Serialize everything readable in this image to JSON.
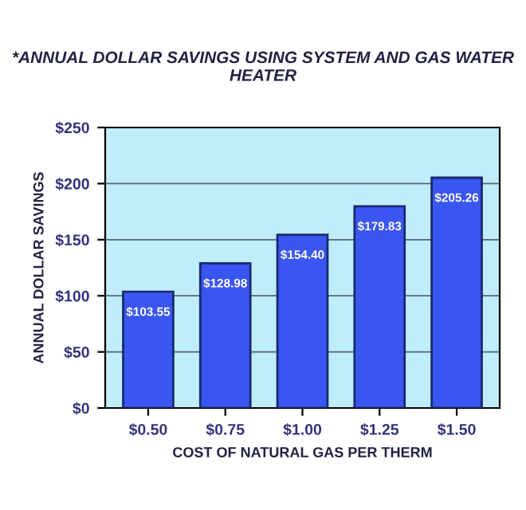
{
  "chart_data": {
    "type": "bar",
    "title": "*ANNUAL DOLLAR SAVINGS USING SYSTEM AND GAS WATER HEATER",
    "xlabel": "COST OF NATURAL GAS PER THERM",
    "ylabel": "ANNUAL DOLLAR SAVINGS",
    "categories": [
      "$0.50",
      "$0.75",
      "$1.00",
      "$1.25",
      "$1.50"
    ],
    "values": [
      103.55,
      128.98,
      154.4,
      179.83,
      205.26
    ],
    "color": "#3a56f0",
    "value_labels": [
      "$103.55",
      "$128.98",
      "$154.40",
      "$179.83",
      "$205.26"
    ],
    "ylim": [
      0,
      250
    ],
    "yticks": [
      {
        "value": 0,
        "label": "$0"
      },
      {
        "value": 50,
        "label": "$50"
      },
      {
        "value": 100,
        "label": "$100"
      },
      {
        "value": 150,
        "label": "$150"
      },
      {
        "value": 200,
        "label": "$200"
      },
      {
        "value": 250,
        "label": "$250"
      }
    ],
    "grid": "y"
  }
}
